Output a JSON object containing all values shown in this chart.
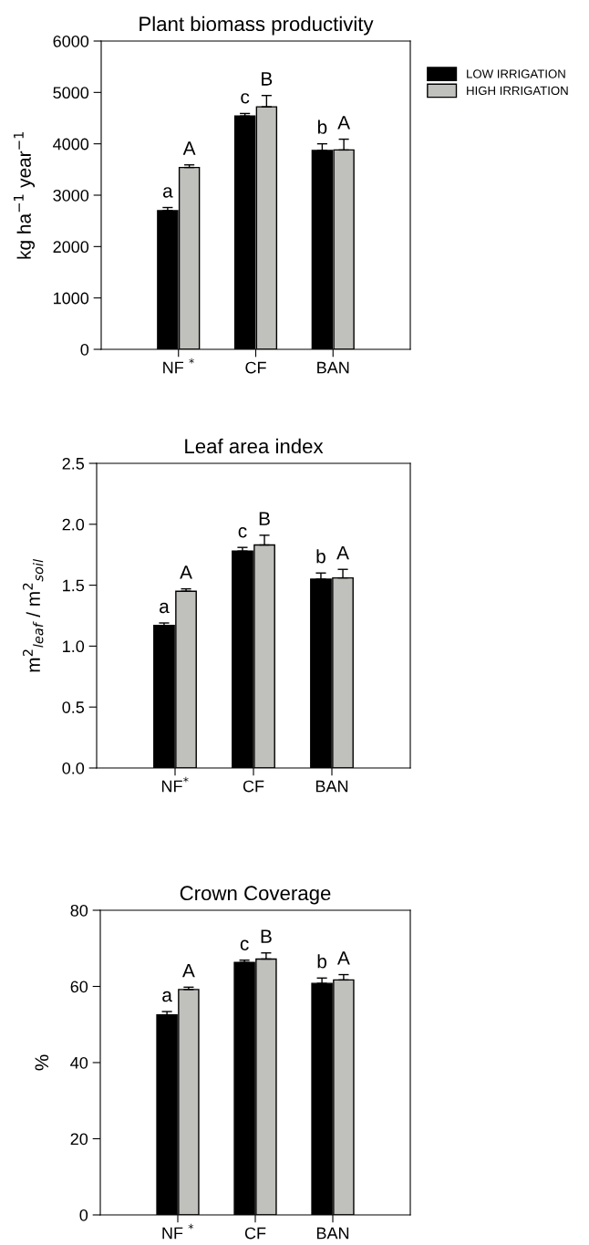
{
  "chart_data": [
    {
      "type": "bar",
      "title": "Plant biomass productivity",
      "ylabel": "kg ha$^{−1}$ year$^{−1}$",
      "categories": [
        "NF $^{*}$",
        "CF",
        "BAN"
      ],
      "series": [
        {
          "name": "LOW IRRIGATION",
          "color": "#000000",
          "values": [
            2700,
            4540,
            3870
          ],
          "errors": [
            [
              2700,
              2760
            ],
            [
              4540,
              4590
            ],
            [
              3870,
              4000
            ]
          ],
          "value_labels": [
            "a",
            "c",
            "b"
          ]
        },
        {
          "name": "HIGH IRRIGATION",
          "color": "#c0c0bc",
          "values": [
            3540,
            4720,
            3880
          ],
          "errors": [
            [
              3540,
              3590
            ],
            [
              4720,
              4940
            ],
            [
              3880,
              4090
            ]
          ],
          "value_labels": [
            "A",
            "B",
            "A"
          ]
        }
      ],
      "ylim": [
        0,
        6000
      ],
      "yticks": [
        0,
        1000,
        2000,
        3000,
        4000,
        5000,
        6000
      ],
      "legend": "right",
      "grid": false
    },
    {
      "type": "bar",
      "title": "Leaf area index",
      "ylabel": "m$^{2}$$_{leaf}$ / m$^{2}$$_{soil}$",
      "categories": [
        "NF$^{*}$",
        "CF",
        "BAN"
      ],
      "series": [
        {
          "color": "#000000",
          "values": [
            1.17,
            1.78,
            1.55
          ],
          "errors": [
            [
              1.17,
              1.19
            ],
            [
              1.78,
              1.81
            ],
            [
              1.55,
              1.6
            ]
          ],
          "value_labels": [
            "a",
            "c",
            "b"
          ]
        },
        {
          "color": "#c0c0bc",
          "values": [
            1.45,
            1.83,
            1.56
          ],
          "errors": [
            [
              1.45,
              1.47
            ],
            [
              1.83,
              1.91
            ],
            [
              1.56,
              1.63
            ]
          ],
          "value_labels": [
            "A",
            "B",
            "A"
          ]
        }
      ],
      "ylim": [
        0,
        2.5
      ],
      "yticks": [
        {
          "value": 0,
          "label": "0.0"
        },
        0.5,
        {
          "value": 1,
          "label": "1.0"
        },
        1.5,
        {
          "value": 2,
          "label": "2.0"
        },
        2.5
      ],
      "grid": false
    },
    {
      "type": "bar",
      "title": "Crown Coverage",
      "ylabel": "%",
      "categories": [
        "NF $^{*}$",
        "CF",
        "BAN"
      ],
      "series": [
        {
          "color": "#000000",
          "values": [
            52.5,
            66.3,
            60.8
          ],
          "errors": [
            [
              52.5,
              53.4
            ],
            [
              66.3,
              66.9
            ],
            [
              60.8,
              62.2
            ]
          ],
          "value_labels": [
            "a",
            "c",
            "b"
          ]
        },
        {
          "color": "#c0c0bc",
          "values": [
            59.2,
            67.2,
            61.7
          ],
          "errors": [
            [
              59.2,
              59.8
            ],
            [
              67.2,
              68.8
            ],
            [
              61.7,
              63.1
            ]
          ],
          "value_labels": [
            "A",
            "B",
            "A"
          ]
        }
      ],
      "ylim": [
        0,
        80
      ],
      "yticks": [
        0,
        20,
        40,
        60,
        80
      ],
      "grid": false
    }
  ]
}
